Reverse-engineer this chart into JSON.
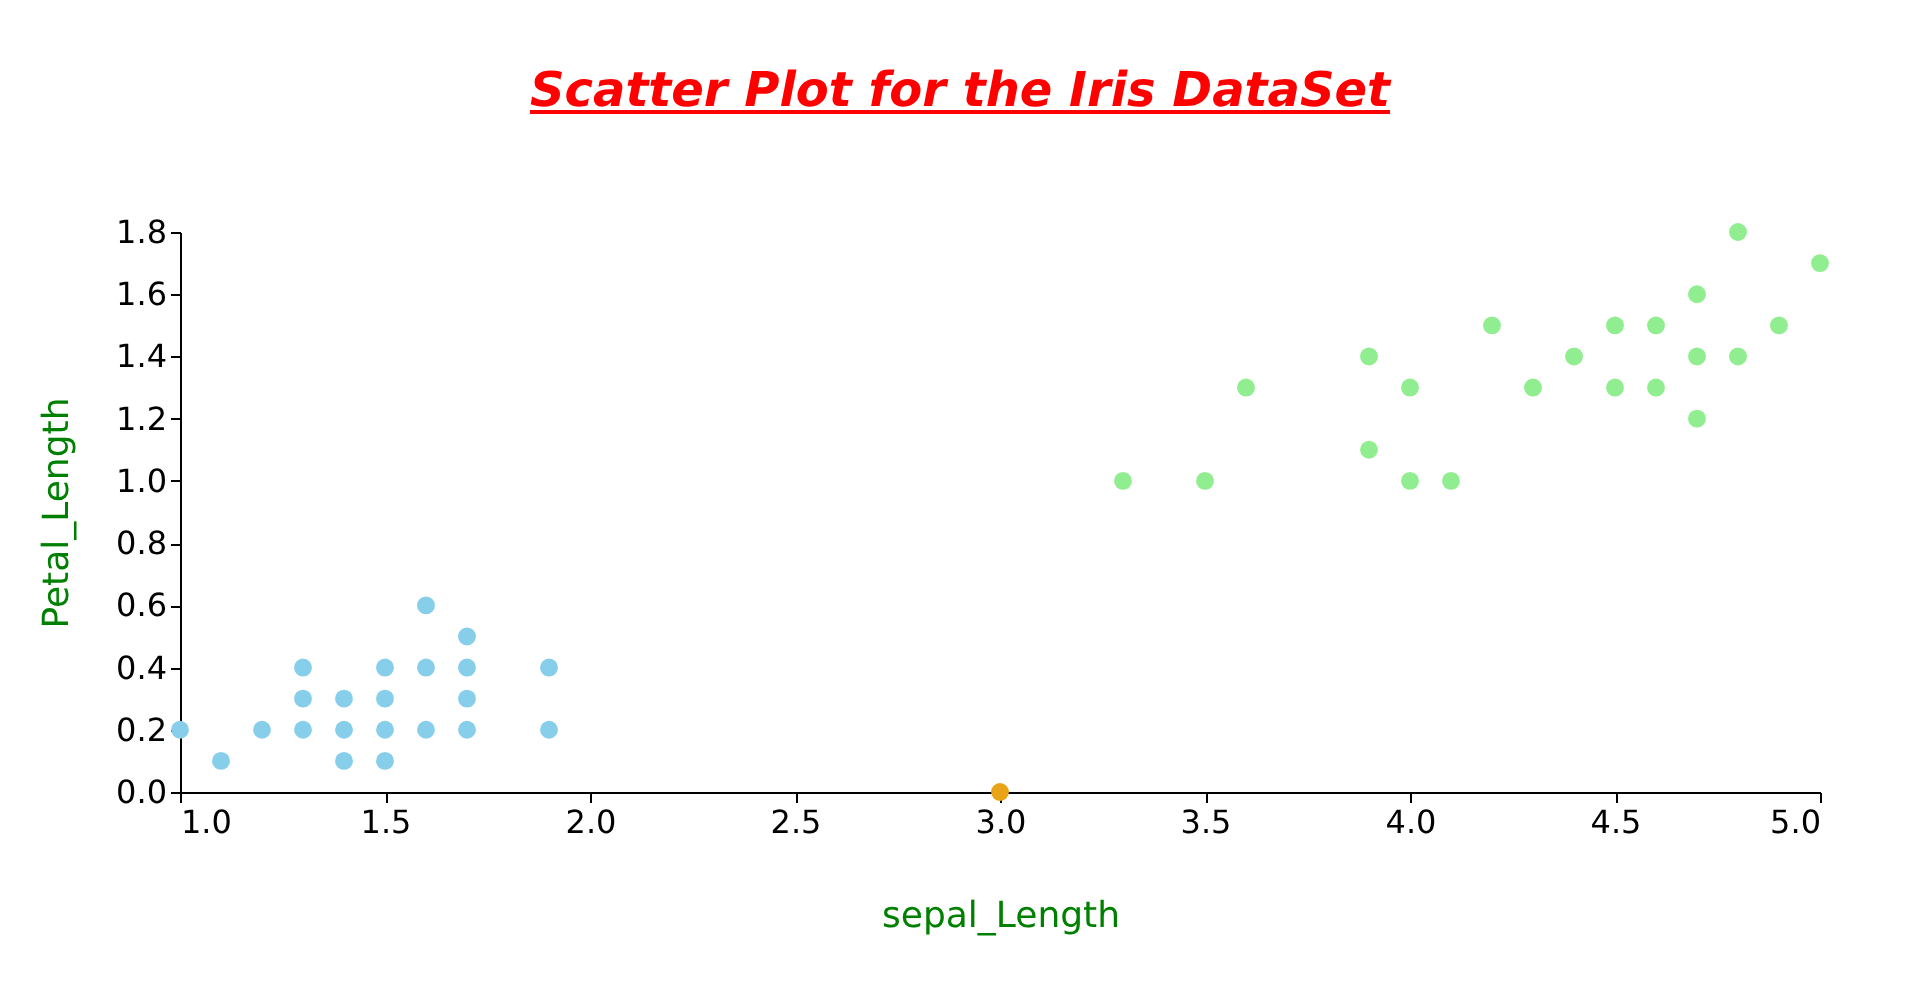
{
  "chart_data": {
    "type": "scatter",
    "title": "Scatter Plot for the Iris DataSet",
    "xlabel": "sepal_Length",
    "ylabel": "Petal_Length",
    "xlim": [
      1.0,
      5.0
    ],
    "xticks": [
      {
        "value": 1,
        "label": "1.0"
      },
      {
        "value": 1.5,
        "label": "1.5"
      },
      {
        "value": 2,
        "label": "2.0"
      },
      {
        "value": 2.5,
        "label": "2.5"
      },
      {
        "value": 3,
        "label": "3.0"
      },
      {
        "value": 3.5,
        "label": "3.5"
      },
      {
        "value": 4,
        "label": "4.0"
      },
      {
        "value": 4.5,
        "label": "4.5"
      },
      {
        "value": 5,
        "label": "5.0"
      }
    ],
    "ylim": [
      0,
      1.8
    ],
    "yticks": [
      {
        "value": 0,
        "label": "0.0"
      },
      {
        "value": 0.2,
        "label": "0.2"
      },
      {
        "value": 0.4,
        "label": "0.4"
      },
      {
        "value": 0.6,
        "label": "0.6"
      },
      {
        "value": 0.8,
        "label": "0.8"
      },
      {
        "value": 1,
        "label": "1.0"
      },
      {
        "value": 1.2,
        "label": "1.2"
      },
      {
        "value": 1.4,
        "label": "1.4"
      },
      {
        "value": 1.6,
        "label": "1.6"
      },
      {
        "value": 1.8,
        "label": "1.8"
      }
    ],
    "grid": false,
    "marker": "circle",
    "series": [
      {
        "color": "#87ceeb",
        "x": [
          1.0,
          1.1,
          1.2,
          1.3,
          1.3,
          1.3,
          1.4,
          1.4,
          1.4,
          1.5,
          1.5,
          1.5,
          1.5,
          1.6,
          1.6,
          1.6,
          1.7,
          1.7,
          1.7,
          1.7,
          1.9,
          1.9
        ],
        "values": [
          0.2,
          0.1,
          0.2,
          0.2,
          0.3,
          0.4,
          0.1,
          0.2,
          0.3,
          0.1,
          0.2,
          0.3,
          0.4,
          0.2,
          0.4,
          0.6,
          0.2,
          0.3,
          0.4,
          0.5,
          0.2,
          0.4
        ]
      },
      {
        "color": "#90ee90",
        "x": [
          3.3,
          3.5,
          3.6,
          3.9,
          3.9,
          4.0,
          4.0,
          4.1,
          4.2,
          4.3,
          4.4,
          4.5,
          4.5,
          4.6,
          4.6,
          4.7,
          4.7,
          4.7,
          4.8,
          4.8,
          4.9,
          5.0
        ],
        "values": [
          1.0,
          1.0,
          1.3,
          1.1,
          1.4,
          1.0,
          1.3,
          1.0,
          1.5,
          1.3,
          1.4,
          1.3,
          1.5,
          1.3,
          1.5,
          1.2,
          1.4,
          1.6,
          1.4,
          1.8,
          1.5,
          1.7
        ]
      },
      {
        "color": "#e8a317",
        "x": [
          3.0
        ],
        "values": [
          0.0
        ]
      }
    ]
  }
}
